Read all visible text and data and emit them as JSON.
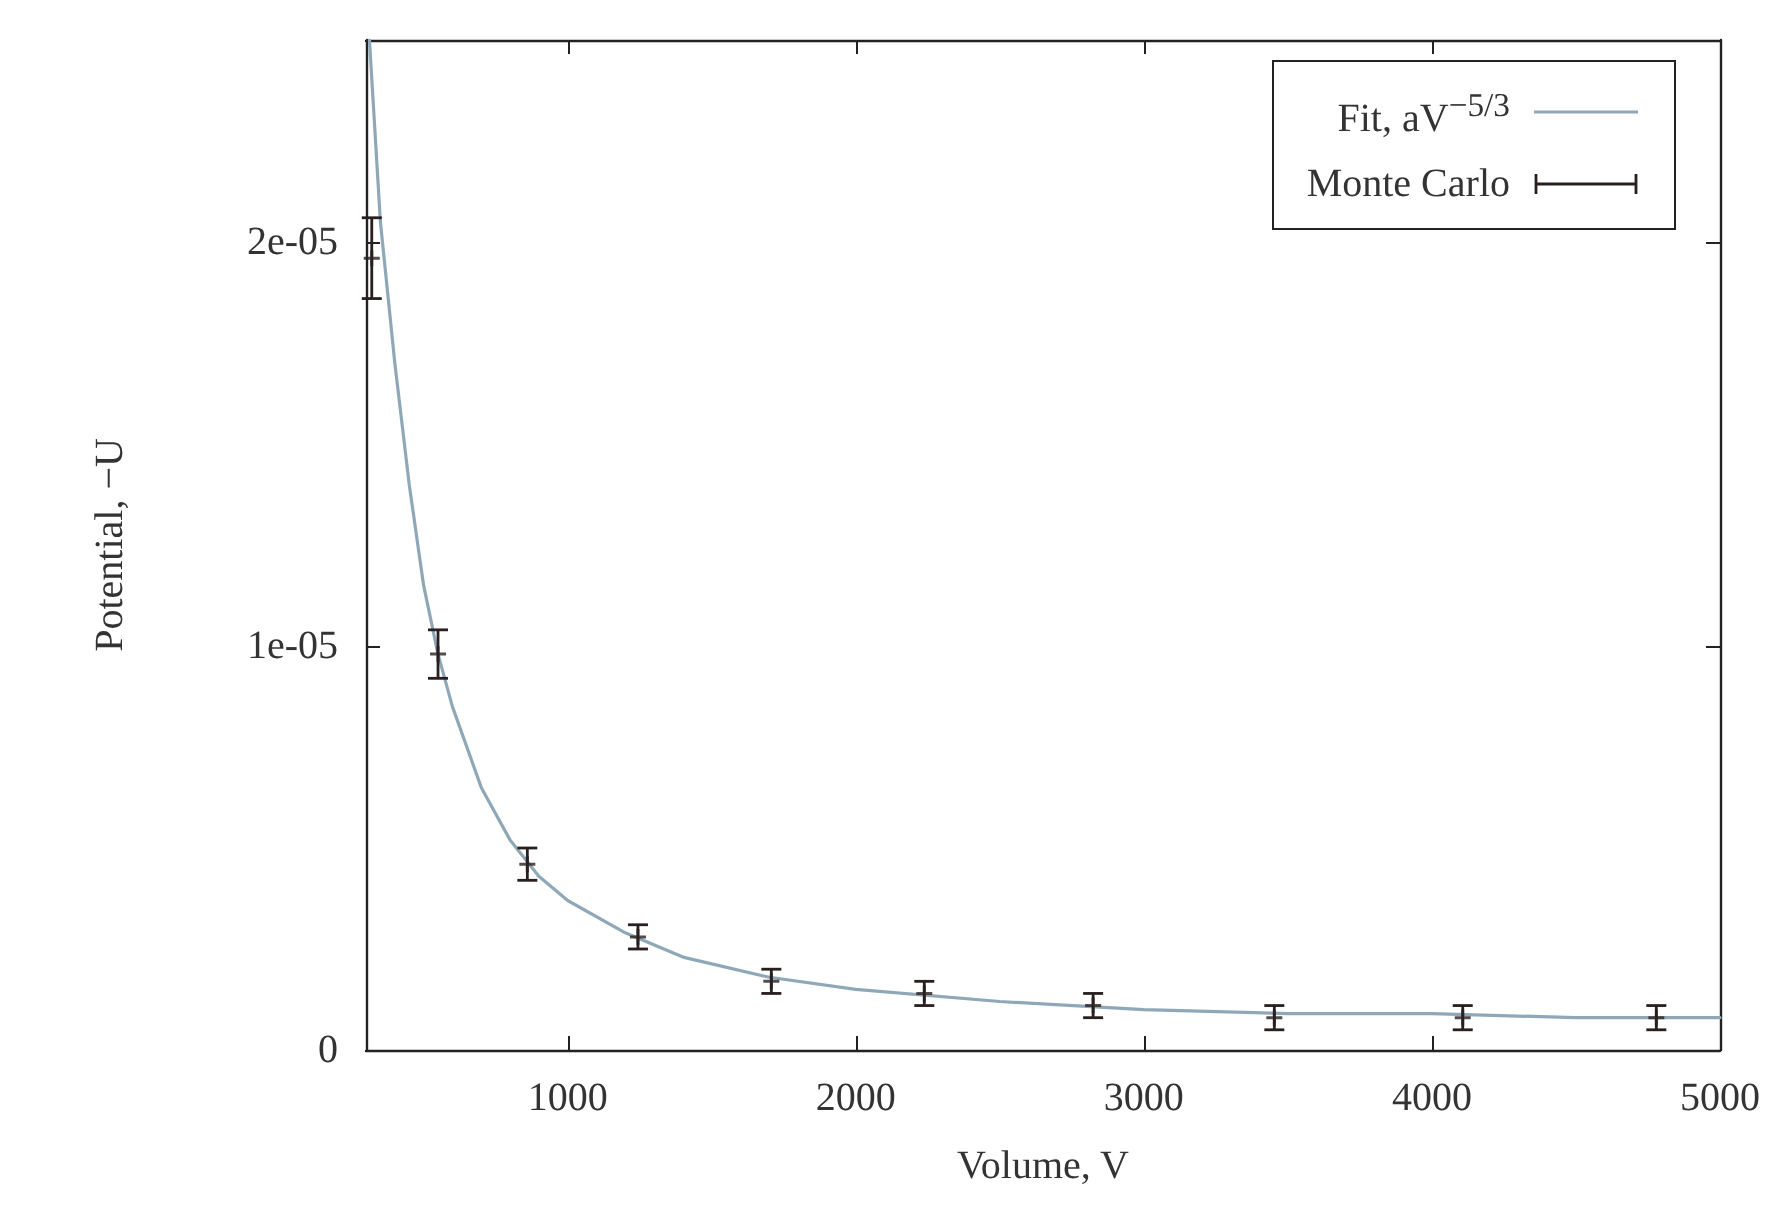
{
  "chart_data": {
    "type": "scatter",
    "xlabel": "Volume, V",
    "ylabel": "Potential, −U",
    "xlim": [
      300,
      5000
    ],
    "xticks": [
      1000,
      2000,
      3000,
      4000,
      5000
    ],
    "ylim": [
      0,
      2.5e-05
    ],
    "yticks": [
      0,
      {
        "value": 1e-05,
        "label": "1e-05"
      },
      {
        "value": 2e-05,
        "label": "2e-05"
      }
    ],
    "grid": false,
    "legend": "top right",
    "series": [
      {
        "name": "Fit, aV$^{−5/3}$",
        "type": "line",
        "color": "#8fa8b8",
        "marker": "none",
        "line_style": "solid",
        "x": [
          312,
          350,
          400,
          450,
          500,
          550,
          600,
          700,
          800,
          900,
          1000,
          1200,
          1400,
          1700,
          2000,
          2500,
          3000,
          3500,
          4000,
          4500,
          5000
        ],
        "values": [
          2.5e-05,
          2.05e-05,
          1.7e-05,
          1.4e-05,
          1.15e-05,
          9.8e-06,
          8.5e-06,
          6.5e-06,
          5.2e-06,
          4.3e-06,
          3.7e-06,
          2.9e-06,
          2.3e-06,
          1.8e-06,
          1.5e-06,
          1.2e-06,
          1e-06,
          9e-07,
          9e-07,
          8e-07,
          8e-07
        ]
      },
      {
        "name": "Monte Carlo",
        "type": "scatter",
        "color": "#2a1f1f",
        "marker": "cross",
        "x": [
          320,
          550,
          860,
          1244,
          1707,
          2238,
          2824,
          3453,
          4107,
          4779
        ],
        "values": [
          1.96e-05,
          9.8e-06,
          4.6e-06,
          2.8e-06,
          1.7e-06,
          1.4e-06,
          1.1e-06,
          8e-07,
          8e-07,
          8e-07
        ],
        "errors": [
          1e-06,
          6e-07,
          4e-07,
          3e-07,
          3e-07,
          3e-07,
          3e-07,
          3e-07,
          3e-07,
          3e-07
        ]
      }
    ]
  }
}
